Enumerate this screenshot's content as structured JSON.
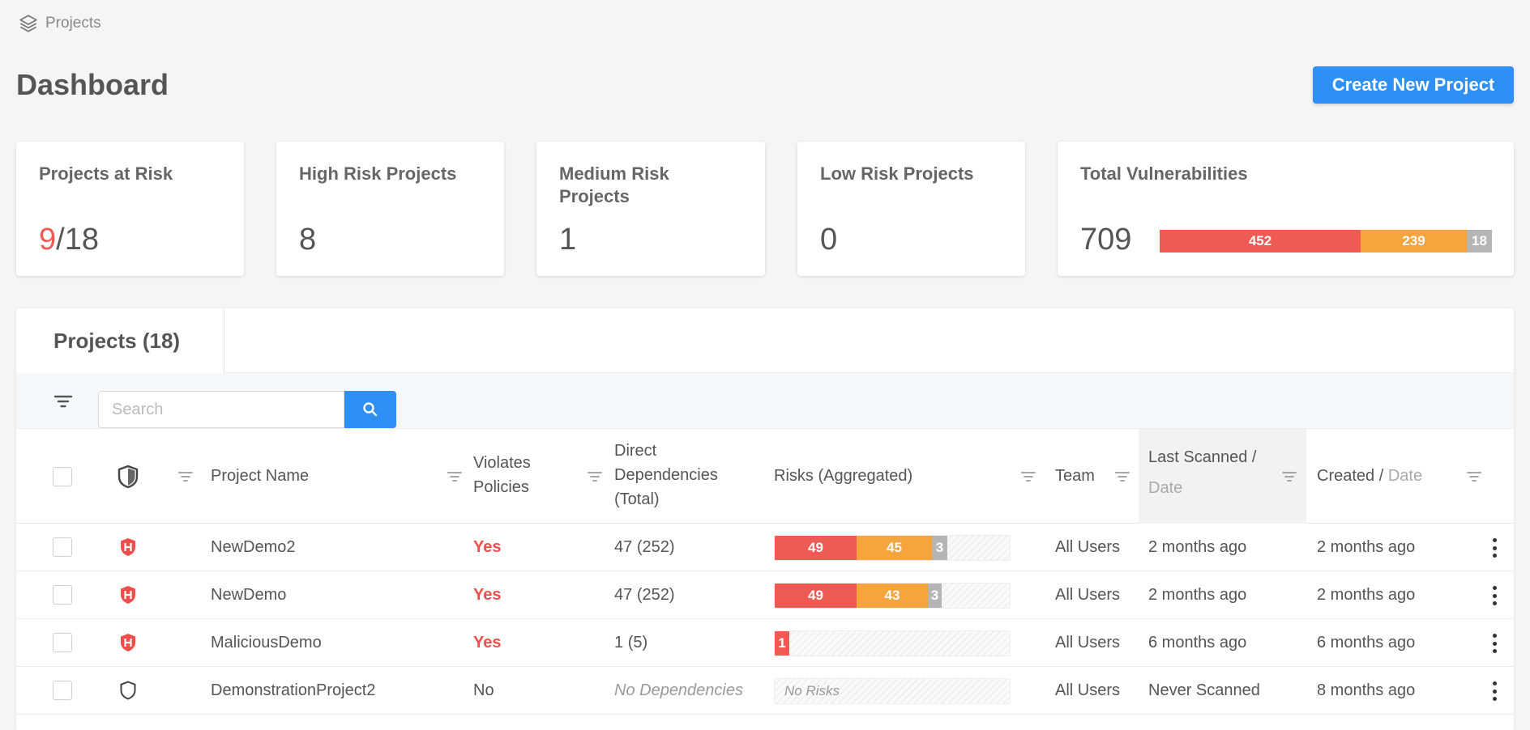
{
  "breadcrumb": {
    "label": "Projects"
  },
  "page": {
    "title": "Dashboard",
    "create_label": "Create New Project"
  },
  "colors": {
    "high": "#ef5a55",
    "medium": "#f6a43d",
    "low": "#b5b5b5",
    "accent": "#2e8ff5"
  },
  "cards": {
    "at_risk": {
      "label": "Projects at Risk",
      "value": "9",
      "total": "/18"
    },
    "high": {
      "label": "High Risk Projects",
      "value": "8"
    },
    "medium": {
      "label": "Medium Risk Projects",
      "value": "1"
    },
    "low": {
      "label": "Low Risk Projects",
      "value": "0"
    },
    "vulns": {
      "label": "Total Vulnerabilities",
      "value": "709",
      "high": "452",
      "medium": "239",
      "low": "18"
    }
  },
  "panel": {
    "tab_label": "Projects (18)",
    "search_placeholder": "Search",
    "columns": {
      "project_name": "Project Name",
      "violates_l1": "Violates",
      "violates_l2": "Policies",
      "deps_l1": "Direct",
      "deps_l2": "Dependencies",
      "deps_l3": "(Total)",
      "risks": "Risks (Aggregated)",
      "team": "Team",
      "last_scanned": "Last Scanned",
      "slash": "/",
      "date": "Date",
      "created": "Created",
      "created_slash": "/",
      "created_date": "Date"
    }
  },
  "rows": [
    {
      "name": "NewDemo2",
      "violates": "Yes",
      "deps": "47",
      "deps_total": "(252)",
      "risk_high": "49",
      "risk_med": "45",
      "risk_low": "3",
      "team": "All Users",
      "last_scanned": "2 months ago",
      "created": "2 months ago"
    },
    {
      "name": "NewDemo",
      "violates": "Yes",
      "deps": "47",
      "deps_total": "(252)",
      "risk_high": "49",
      "risk_med": "43",
      "risk_low": "3",
      "team": "All Users",
      "last_scanned": "2 months ago",
      "created": "2 months ago"
    },
    {
      "name": "MaliciousDemo",
      "violates": "Yes",
      "deps": "1",
      "deps_total": "(5)",
      "risk_high": "1",
      "team": "All Users",
      "last_scanned": "6 months ago",
      "created": "6 months ago"
    },
    {
      "name": "DemonstrationProject2",
      "violates": "No",
      "deps_none": "No Dependencies",
      "risk_none": "No Risks",
      "team": "All Users",
      "last_scanned": "Never Scanned",
      "created": "8 months ago"
    }
  ]
}
